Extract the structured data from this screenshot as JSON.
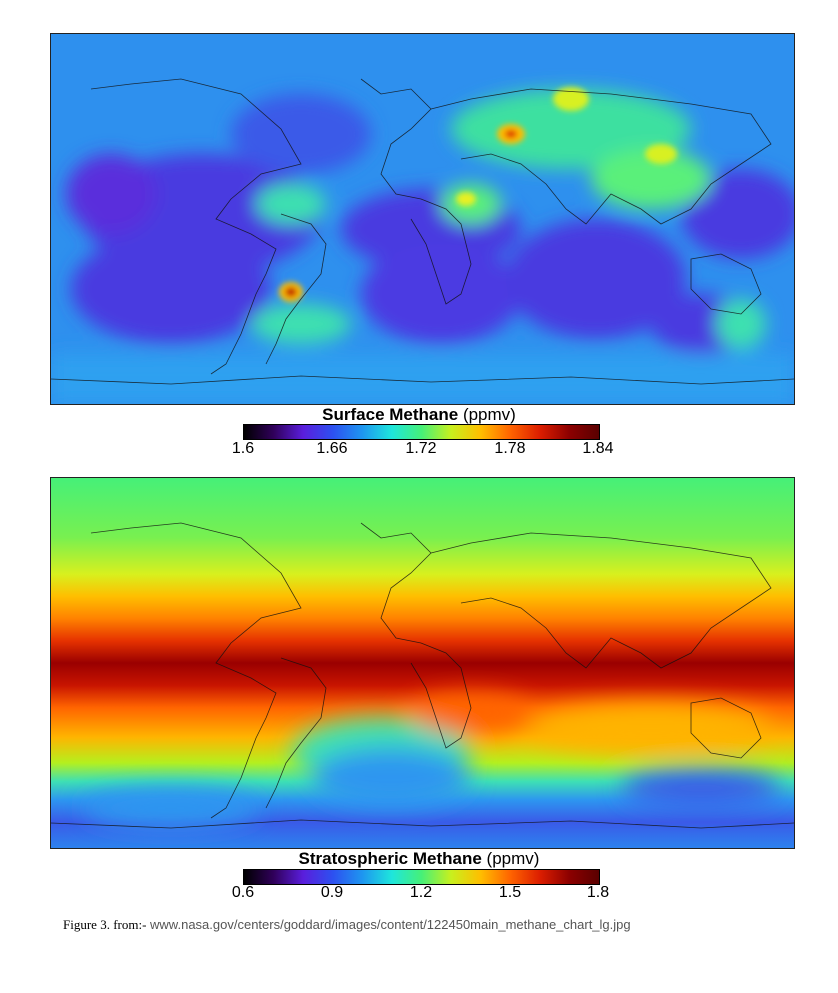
{
  "maps": [
    {
      "title": "Surface Methane",
      "unit": "(ppmv)",
      "ticks": [
        "1.6",
        "1.66",
        "1.72",
        "1.78",
        "1.84"
      ],
      "scale": [
        1.6,
        1.84
      ]
    },
    {
      "title": "Stratospheric Methane",
      "unit": "(ppmv)",
      "ticks": [
        "0.6",
        "0.9",
        "1.2",
        "1.5",
        "1.8"
      ],
      "scale": [
        0.6,
        1.8
      ]
    }
  ],
  "caption": {
    "lead": "Figure 3. from:-",
    "url": "www.nasa.gov/centers/goddard/images/content/122450main_methane_chart_lg.jpg"
  },
  "colormap": [
    "#000000",
    "#30005a",
    "#5a1edc",
    "#2d50f0",
    "#1e96f0",
    "#1ee6dc",
    "#46f078",
    "#c8f01e",
    "#ffbe00",
    "#ff6400",
    "#dc1e00",
    "#8c0000",
    "#5a0000"
  ]
}
